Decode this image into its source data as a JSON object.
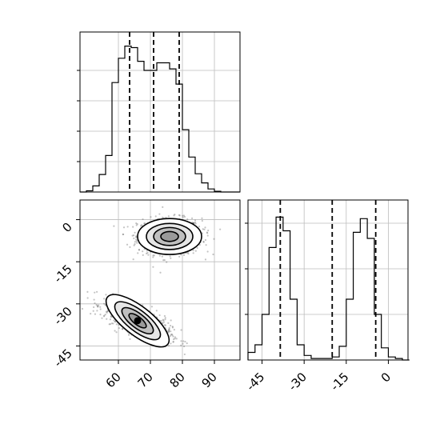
{
  "chart_data": [
    {
      "panel": "histogram-x",
      "type": "bar",
      "bins": [
        48,
        50,
        52,
        54,
        56,
        58,
        60,
        62,
        64,
        66,
        68,
        70,
        72,
        74,
        76,
        78,
        80,
        82,
        84,
        86,
        88,
        90,
        92,
        94,
        96,
        98
      ],
      "counts": [
        0,
        0.008,
        0.04,
        0.115,
        0.24,
        0.72,
        0.88,
        0.96,
        0.95,
        0.86,
        0.8,
        0.8,
        0.85,
        0.85,
        0.81,
        0.71,
        0.41,
        0.23,
        0.12,
        0.06,
        0.02,
        0.005,
        0,
        0,
        0
      ],
      "quantiles": [
        63.5,
        71,
        79
      ],
      "xlim": [
        48,
        98
      ],
      "grid": true
    },
    {
      "panel": "contour-2d",
      "type": "scatter",
      "xlim": [
        48,
        98
      ],
      "ylim": [
        -50,
        7
      ],
      "x_ticks": [
        60,
        70,
        80,
        90
      ],
      "y_ticks": [
        0,
        -15,
        -30,
        -45
      ],
      "clusters": [
        {
          "mean_x": 76,
          "mean_y": -6,
          "sd_x": 5,
          "sd_y": 3.2,
          "rho": 0
        },
        {
          "mean_x": 66,
          "mean_y": -36,
          "sd_x": 5.2,
          "sd_y": 3.4,
          "rho": -0.7
        }
      ],
      "contour_levels": [
        0.25,
        0.5,
        0.75,
        0.9
      ]
    },
    {
      "panel": "histogram-y",
      "type": "bar",
      "bins": [
        -50,
        -47.5,
        -45,
        -42.5,
        -40,
        -37.5,
        -35,
        -32.5,
        -30,
        -27.5,
        -25,
        -22.5,
        -20,
        -17.5,
        -15,
        -12.5,
        -10,
        -7.5,
        -5,
        -2.5,
        0,
        2.5,
        5,
        7.5
      ],
      "counts": [
        0.05,
        0.1,
        0.3,
        0.74,
        0.94,
        0.85,
        0.4,
        0.1,
        0.03,
        0.01,
        0.01,
        0.01,
        0.02,
        0.09,
        0.4,
        0.84,
        0.93,
        0.8,
        0.3,
        0.08,
        0.02,
        0.01,
        0
      ],
      "quantiles": [
        -38.5,
        -20,
        -4.5
      ],
      "xlim": [
        -50,
        7
      ],
      "x_ticks": [
        -45,
        -30,
        -15,
        0
      ],
      "grid": true
    }
  ]
}
